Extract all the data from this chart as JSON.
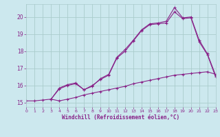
{
  "bg_color": "#cce8ee",
  "line_color": "#882288",
  "grid_color": "#aacccc",
  "xlabel": "Windchill (Refroidissement éolien,°C)",
  "xlabel_color": "#882288",
  "tick_color": "#882288",
  "xmin": 0,
  "xmax": 23,
  "ymin": 14.75,
  "ymax": 20.75,
  "yticks": [
    15,
    16,
    17,
    18,
    19,
    20
  ],
  "xticks": [
    0,
    1,
    2,
    3,
    4,
    5,
    6,
    7,
    8,
    9,
    10,
    11,
    12,
    13,
    14,
    15,
    16,
    17,
    18,
    19,
    20,
    21,
    22,
    23
  ],
  "line1_x": [
    0,
    1,
    2,
    3,
    4,
    5,
    6,
    7,
    8,
    9,
    10,
    11,
    12,
    13,
    14,
    15,
    16,
    17,
    18,
    19,
    20,
    21,
    22,
    23
  ],
  "line1_y": [
    15.1,
    15.1,
    15.15,
    15.2,
    15.1,
    15.2,
    15.3,
    15.45,
    15.55,
    15.65,
    15.75,
    15.85,
    15.95,
    16.1,
    16.2,
    16.3,
    16.4,
    16.5,
    16.6,
    16.65,
    16.7,
    16.75,
    16.8,
    16.65
  ],
  "line2_x": [
    3,
    4,
    5,
    6,
    7,
    8,
    9,
    10,
    11,
    12,
    13,
    14,
    15,
    16,
    17,
    18,
    19,
    20,
    21,
    22,
    23
  ],
  "line2_y": [
    15.2,
    15.8,
    16.0,
    16.1,
    15.75,
    16.0,
    16.35,
    16.6,
    17.6,
    18.0,
    18.6,
    19.2,
    19.55,
    19.6,
    19.65,
    20.3,
    19.9,
    19.95,
    18.55,
    17.8,
    16.5
  ],
  "line3_x": [
    3,
    4,
    5,
    6,
    7,
    8,
    9,
    10,
    11,
    12,
    13,
    14,
    15,
    16,
    17,
    18,
    19,
    20,
    21,
    22,
    23
  ],
  "line3_y": [
    15.2,
    15.85,
    16.05,
    16.15,
    15.75,
    15.95,
    16.4,
    16.65,
    17.65,
    18.1,
    18.65,
    19.25,
    19.6,
    19.65,
    19.75,
    20.55,
    19.95,
    20.0,
    18.65,
    17.85,
    16.6
  ]
}
